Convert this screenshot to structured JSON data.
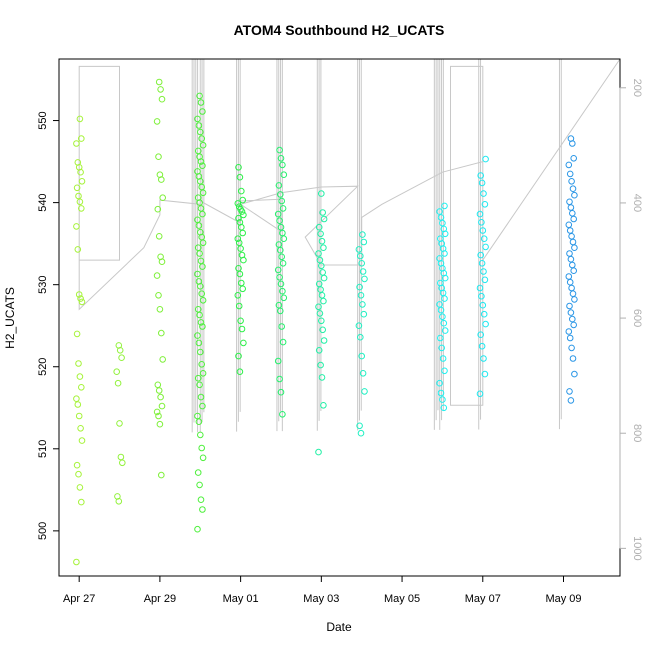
{
  "chart_data": {
    "type": "scatter",
    "title": "ATOM4 Southbound H2_UCATS",
    "xlabel": "Date",
    "ylabel": "H2_UCATS",
    "x_tick_labels": [
      "Apr 27",
      "Apr 29",
      "May 01",
      "May 03",
      "May 05",
      "May 07",
      "May 09"
    ],
    "x_tick_days": [
      0,
      2,
      4,
      6,
      8,
      10,
      12
    ],
    "xlim": [
      -0.5,
      13.4
    ],
    "ylim": [
      494.5,
      557.5
    ],
    "y_ticks": [
      500,
      510,
      520,
      530,
      540,
      550
    ],
    "y2_ticks": [
      200,
      400,
      600,
      800,
      1000
    ],
    "y2lim": [
      1048,
      150
    ],
    "y2_axis_color": "#b0b0b0",
    "marker": "open-circle",
    "clusters": [
      {
        "day": 0.0,
        "color": "#a6f33a",
        "y": [
          496.2,
          503.5,
          505.3,
          506.9,
          508.0,
          511.0,
          512.5,
          514.0,
          515.4,
          516.1,
          517.5,
          518.8,
          520.4,
          524.0,
          527.9,
          528.3,
          528.8,
          534.3,
          537.1,
          539.3,
          540.1,
          540.8,
          541.8,
          542.6,
          543.7,
          544.3,
          544.9,
          547.2,
          547.8,
          550.2
        ]
      },
      {
        "day": 1.0,
        "color": "#93f23e",
        "y": [
          503.6,
          504.2,
          508.3,
          509.0,
          513.1,
          518.0,
          519.4,
          521.1,
          522.0,
          522.6
        ]
      },
      {
        "day": 2.0,
        "color": "#7ff03a",
        "y": [
          506.8,
          513.0,
          514.0,
          514.5,
          515.2,
          516.3,
          517.1,
          517.8,
          520.9,
          524.1,
          527.0,
          528.7,
          531.1,
          532.8,
          533.4,
          535.9,
          539.2,
          540.6,
          542.8,
          543.4,
          545.6,
          549.9,
          552.6,
          553.8,
          554.7
        ]
      },
      {
        "day": 3.0,
        "color": "#4ef03c",
        "y": [
          500.2,
          502.6,
          503.8,
          505.6,
          507.1,
          508.9,
          510.1,
          511.7,
          513.3,
          514.0,
          515.2,
          516.3,
          517.8,
          518.6,
          519.2,
          520.3,
          521.8,
          522.9,
          523.8,
          524.9,
          525.4,
          526.3,
          527.0,
          528.1,
          528.9,
          529.8,
          530.4,
          531.3,
          532.2,
          532.9,
          533.8,
          534.5,
          535.1,
          535.8,
          536.4,
          537.2,
          537.9,
          538.6,
          539.3,
          540.0,
          540.6,
          541.2,
          541.9,
          542.6,
          543.2,
          543.8,
          544.5,
          545.0,
          545.6,
          546.3,
          547.0,
          547.8,
          548.6,
          549.4,
          550.2,
          551.1,
          552.2,
          553.0
        ]
      },
      {
        "day": 4.0,
        "color": "#2cf048",
        "y": [
          519.4,
          521.3,
          522.9,
          524.6,
          525.6,
          527.4,
          528.7,
          529.5,
          530.2,
          531.3,
          532.0,
          533.0,
          533.6,
          534.4,
          535.1,
          535.6,
          536.3,
          537.0,
          537.6,
          538.1,
          538.5,
          538.9,
          539.2,
          539.5,
          539.9,
          540.3,
          541.4,
          543.1,
          544.3
        ]
      },
      {
        "day": 5.0,
        "color": "#25f06d",
        "y": [
          514.2,
          516.9,
          518.5,
          520.7,
          523.0,
          524.9,
          526.8,
          527.5,
          528.4,
          529.2,
          530.1,
          530.9,
          531.8,
          532.6,
          533.4,
          534.2,
          534.9,
          535.6,
          536.3,
          537.0,
          537.8,
          538.6,
          539.3,
          540.2,
          541.0,
          542.1,
          543.4,
          544.6,
          545.4,
          546.4
        ]
      },
      {
        "day": 6.0,
        "color": "#21f0a6",
        "y": [
          509.6,
          515.3,
          518.7,
          520.2,
          522.0,
          523.2,
          524.5,
          525.6,
          526.5,
          527.3,
          528.0,
          528.7,
          529.4,
          530.1,
          530.8,
          531.5,
          532.3,
          533.0,
          533.8,
          534.5,
          535.3,
          536.2,
          537.0,
          538.0,
          538.8,
          541.1
        ]
      },
      {
        "day": 7.0,
        "color": "#20f0c3",
        "y": [
          511.9,
          512.8,
          517.0,
          519.2,
          521.3,
          523.6,
          525.0,
          526.4,
          527.6,
          528.7,
          529.7,
          530.7,
          531.6,
          532.6,
          533.5,
          534.3,
          535.2,
          536.1
        ]
      },
      {
        "day": 9.0,
        "color": "#1ef0f0",
        "y": [
          515.0,
          516.0,
          516.8,
          518.0,
          519.5,
          521.0,
          522.3,
          523.5,
          524.4,
          525.3,
          526.1,
          526.9,
          527.6,
          528.3,
          529.0,
          529.6,
          530.2,
          530.8,
          531.4,
          532.0,
          532.6,
          533.2,
          533.8,
          534.4,
          535.0,
          535.6,
          536.2,
          536.8,
          537.5,
          538.2,
          538.9,
          539.6
        ]
      },
      {
        "day": 10.0,
        "color": "#1ee8f0",
        "y": [
          516.7,
          519.1,
          521.0,
          522.5,
          523.9,
          525.2,
          526.4,
          527.5,
          528.6,
          529.6,
          530.6,
          531.6,
          532.6,
          533.6,
          534.6,
          535.6,
          536.6,
          537.6,
          538.6,
          539.8,
          541.1,
          542.4,
          543.3,
          545.3
        ]
      },
      {
        "day": 12.2,
        "color": "#2a96e6",
        "y": [
          515.9,
          517.0,
          519.1,
          521.0,
          522.3,
          523.5,
          524.3,
          525.1,
          525.8,
          526.6,
          527.4,
          528.2,
          528.9,
          529.6,
          530.3,
          531.0,
          531.7,
          532.4,
          533.1,
          533.8,
          534.5,
          535.2,
          535.9,
          536.6,
          537.3,
          538.0,
          538.7,
          539.4,
          540.1,
          540.9,
          541.7,
          542.6,
          543.5,
          544.6,
          545.4,
          547.2,
          547.8
        ]
      }
    ],
    "flight_track": [
      [
        0.0,
        527
      ],
      [
        0.0,
        533
      ],
      [
        1.0,
        533
      ],
      [
        1.0,
        556.6
      ],
      [
        0.0,
        556.6
      ],
      [
        0.0,
        527
      ],
      [
        1.6,
        534.5
      ],
      [
        2.0,
        538.5
      ],
      [
        2.0,
        540.3
      ],
      [
        3.0,
        539.8
      ],
      [
        3.0,
        540.2
      ],
      [
        4.0,
        537.5
      ],
      [
        4.0,
        540.2
      ],
      [
        5.0,
        540.4
      ],
      [
        5.0,
        536.5
      ],
      [
        4.0,
        539.8
      ],
      [
        5.0,
        541.2
      ],
      [
        6.0,
        541.9
      ],
      [
        6.9,
        542.0
      ],
      [
        5.6,
        535.8
      ],
      [
        6.0,
        532.4
      ],
      [
        7.0,
        532.4
      ],
      [
        7.0,
        538.2
      ],
      [
        7.5,
        539.8
      ],
      [
        9.0,
        543.7
      ],
      [
        10.0,
        545.0
      ],
      [
        10.0,
        515.3
      ],
      [
        9.2,
        515.3
      ],
      [
        9.2,
        556.6
      ],
      [
        10.0,
        556.6
      ],
      [
        10.0,
        533.0
      ],
      [
        13.4,
        557.5
      ]
    ],
    "profile_bottoms": [
      {
        "day": 2.8,
        "pairs": 4
      },
      {
        "day": 3.0,
        "pairs": 3
      },
      {
        "day": 3.9,
        "pairs": 3
      },
      {
        "day": 4.9,
        "pairs": 4
      },
      {
        "day": 5.9,
        "pairs": 3
      },
      {
        "day": 6.9,
        "pairs": 3
      },
      {
        "day": 8.8,
        "pairs": 6
      },
      {
        "day": 9.9,
        "pairs": 2
      },
      {
        "day": 11.9,
        "pairs": 2
      }
    ]
  }
}
